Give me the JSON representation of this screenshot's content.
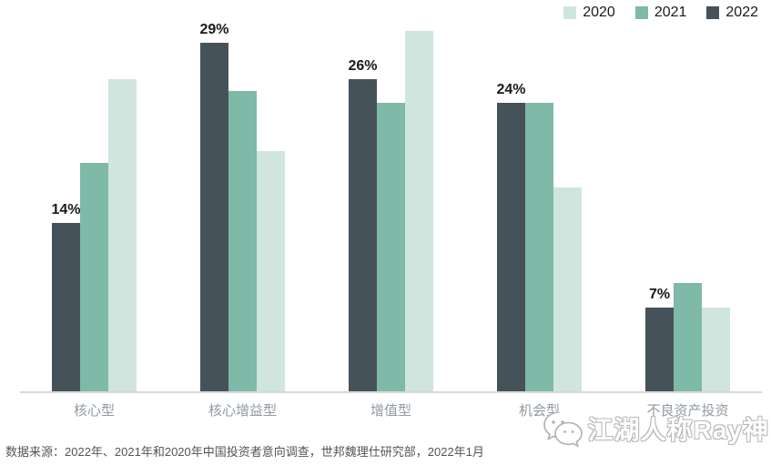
{
  "chart_data": {
    "type": "bar",
    "title": "",
    "categories": [
      "核心型",
      "核心增益型",
      "增值型",
      "机会型",
      "不良资产投资"
    ],
    "series": [
      {
        "name": "2020",
        "color": "#cfe5dd",
        "values": [
          26,
          20,
          30,
          17,
          7
        ]
      },
      {
        "name": "2021",
        "color": "#7fb9a7",
        "values": [
          19,
          25,
          24,
          24,
          9
        ]
      },
      {
        "name": "2022",
        "color": "#46525a",
        "values": [
          14,
          29,
          26,
          24,
          7
        ],
        "labels": [
          "14%",
          "29%",
          "26%",
          "24%",
          "7%"
        ]
      }
    ],
    "bar_order": [
      "2022",
      "2021",
      "2020"
    ],
    "xlabel": "",
    "ylabel": "",
    "ylim": [
      0,
      31
    ],
    "grid": false,
    "legend_position": "top-right",
    "data_label_series": "2022",
    "axis_line_color": "#d8d8d8"
  },
  "source": {
    "text": "数据来源：2022年、2021年和2020年中国投资者意向调查，世邦魏理仕研究部，2022年1月"
  },
  "watermark": {
    "text": "江湖人称Ray神",
    "icon": "wechat-icon"
  }
}
